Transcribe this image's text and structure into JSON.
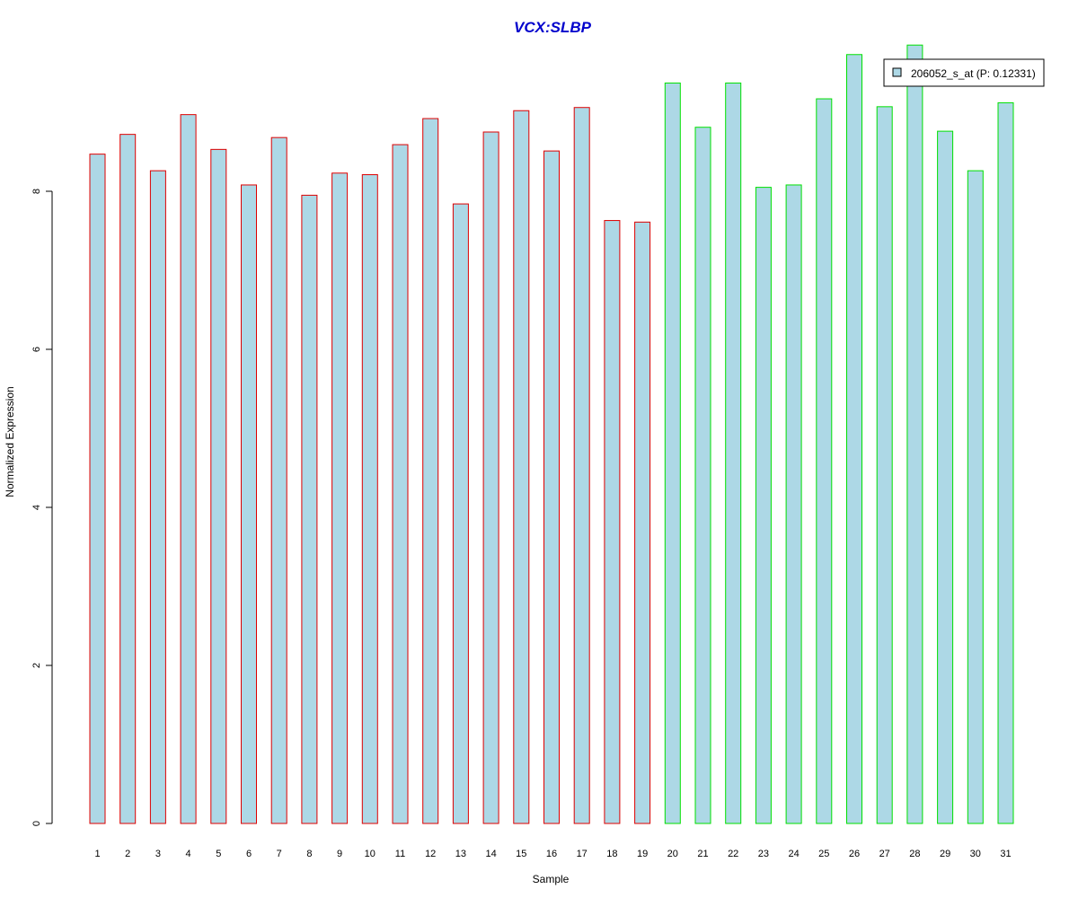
{
  "chart_data": {
    "type": "bar",
    "title": "VCX:SLBP",
    "xlabel": "Sample",
    "ylabel": "Normalized Expression",
    "categories": [
      "1",
      "2",
      "3",
      "4",
      "5",
      "6",
      "7",
      "8",
      "9",
      "10",
      "11",
      "12",
      "13",
      "14",
      "15",
      "16",
      "17",
      "18",
      "19",
      "20",
      "21",
      "22",
      "23",
      "24",
      "25",
      "26",
      "27",
      "28",
      "29",
      "30",
      "31"
    ],
    "series": [
      {
        "name": "206052_s_at (P: 0.12331)",
        "values": [
          8.47,
          8.72,
          8.26,
          8.97,
          8.53,
          8.08,
          8.68,
          7.95,
          8.23,
          8.21,
          8.59,
          8.92,
          7.84,
          8.75,
          9.02,
          8.51,
          9.06,
          7.63,
          7.61,
          9.37,
          8.81,
          9.37,
          8.05,
          8.08,
          9.17,
          9.73,
          9.07,
          9.85,
          8.76,
          8.26,
          9.12
        ]
      }
    ],
    "groups": [
      {
        "range": [
          1,
          19
        ],
        "border_color": "#dd0000"
      },
      {
        "range": [
          20,
          31
        ],
        "border_color": "#00e000"
      }
    ],
    "bar_fill": "#add8e6",
    "title_color": "#0000cc",
    "yticks": [
      0,
      2,
      4,
      6,
      8
    ],
    "ylim": [
      0,
      9.85
    ],
    "grid": false,
    "legend_position": "top-right"
  }
}
